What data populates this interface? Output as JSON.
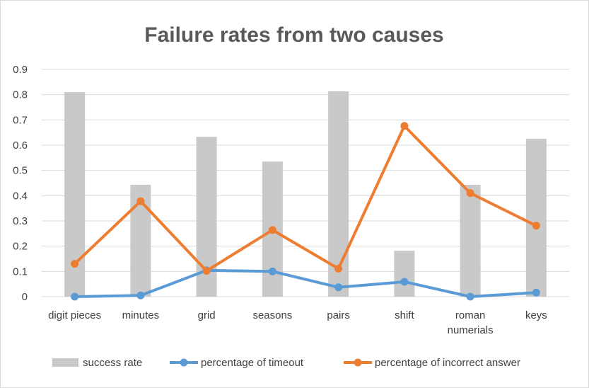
{
  "chart_data": {
    "type": "bar",
    "title": "Failure rates from two causes",
    "categories": [
      "digit pieces",
      "minutes",
      "grid",
      "seasons",
      "pairs",
      "shift",
      "roman numerials",
      "keys"
    ],
    "category_lines": [
      [
        "digit pieces"
      ],
      [
        "minutes"
      ],
      [
        "grid"
      ],
      [
        "seasons"
      ],
      [
        "pairs"
      ],
      [
        "shift"
      ],
      [
        "roman",
        "numerials"
      ],
      [
        "keys"
      ]
    ],
    "ylim": [
      0,
      0.9
    ],
    "yticks": [
      "0",
      "0.1",
      "0.2",
      "0.3",
      "0.4",
      "0.5",
      "0.6",
      "0.7",
      "0.8",
      "0.9"
    ],
    "grid": true,
    "legend_position": "bottom",
    "series": [
      {
        "name": "success rate",
        "kind": "bar",
        "color": "#c9c9c9",
        "values": [
          0.81,
          0.443,
          0.633,
          0.535,
          0.813,
          0.182,
          0.443,
          0.625
        ]
      },
      {
        "name": "percentage of timeout",
        "kind": "line",
        "color": "#5b9bd5",
        "values": [
          0.0,
          0.005,
          0.104,
          0.1,
          0.037,
          0.059,
          0.0,
          0.016
        ]
      },
      {
        "name": "percentage of incorrect answer",
        "kind": "line",
        "color": "#ed7d31",
        "values": [
          0.13,
          0.378,
          0.102,
          0.264,
          0.111,
          0.676,
          0.41,
          0.281
        ]
      }
    ]
  }
}
